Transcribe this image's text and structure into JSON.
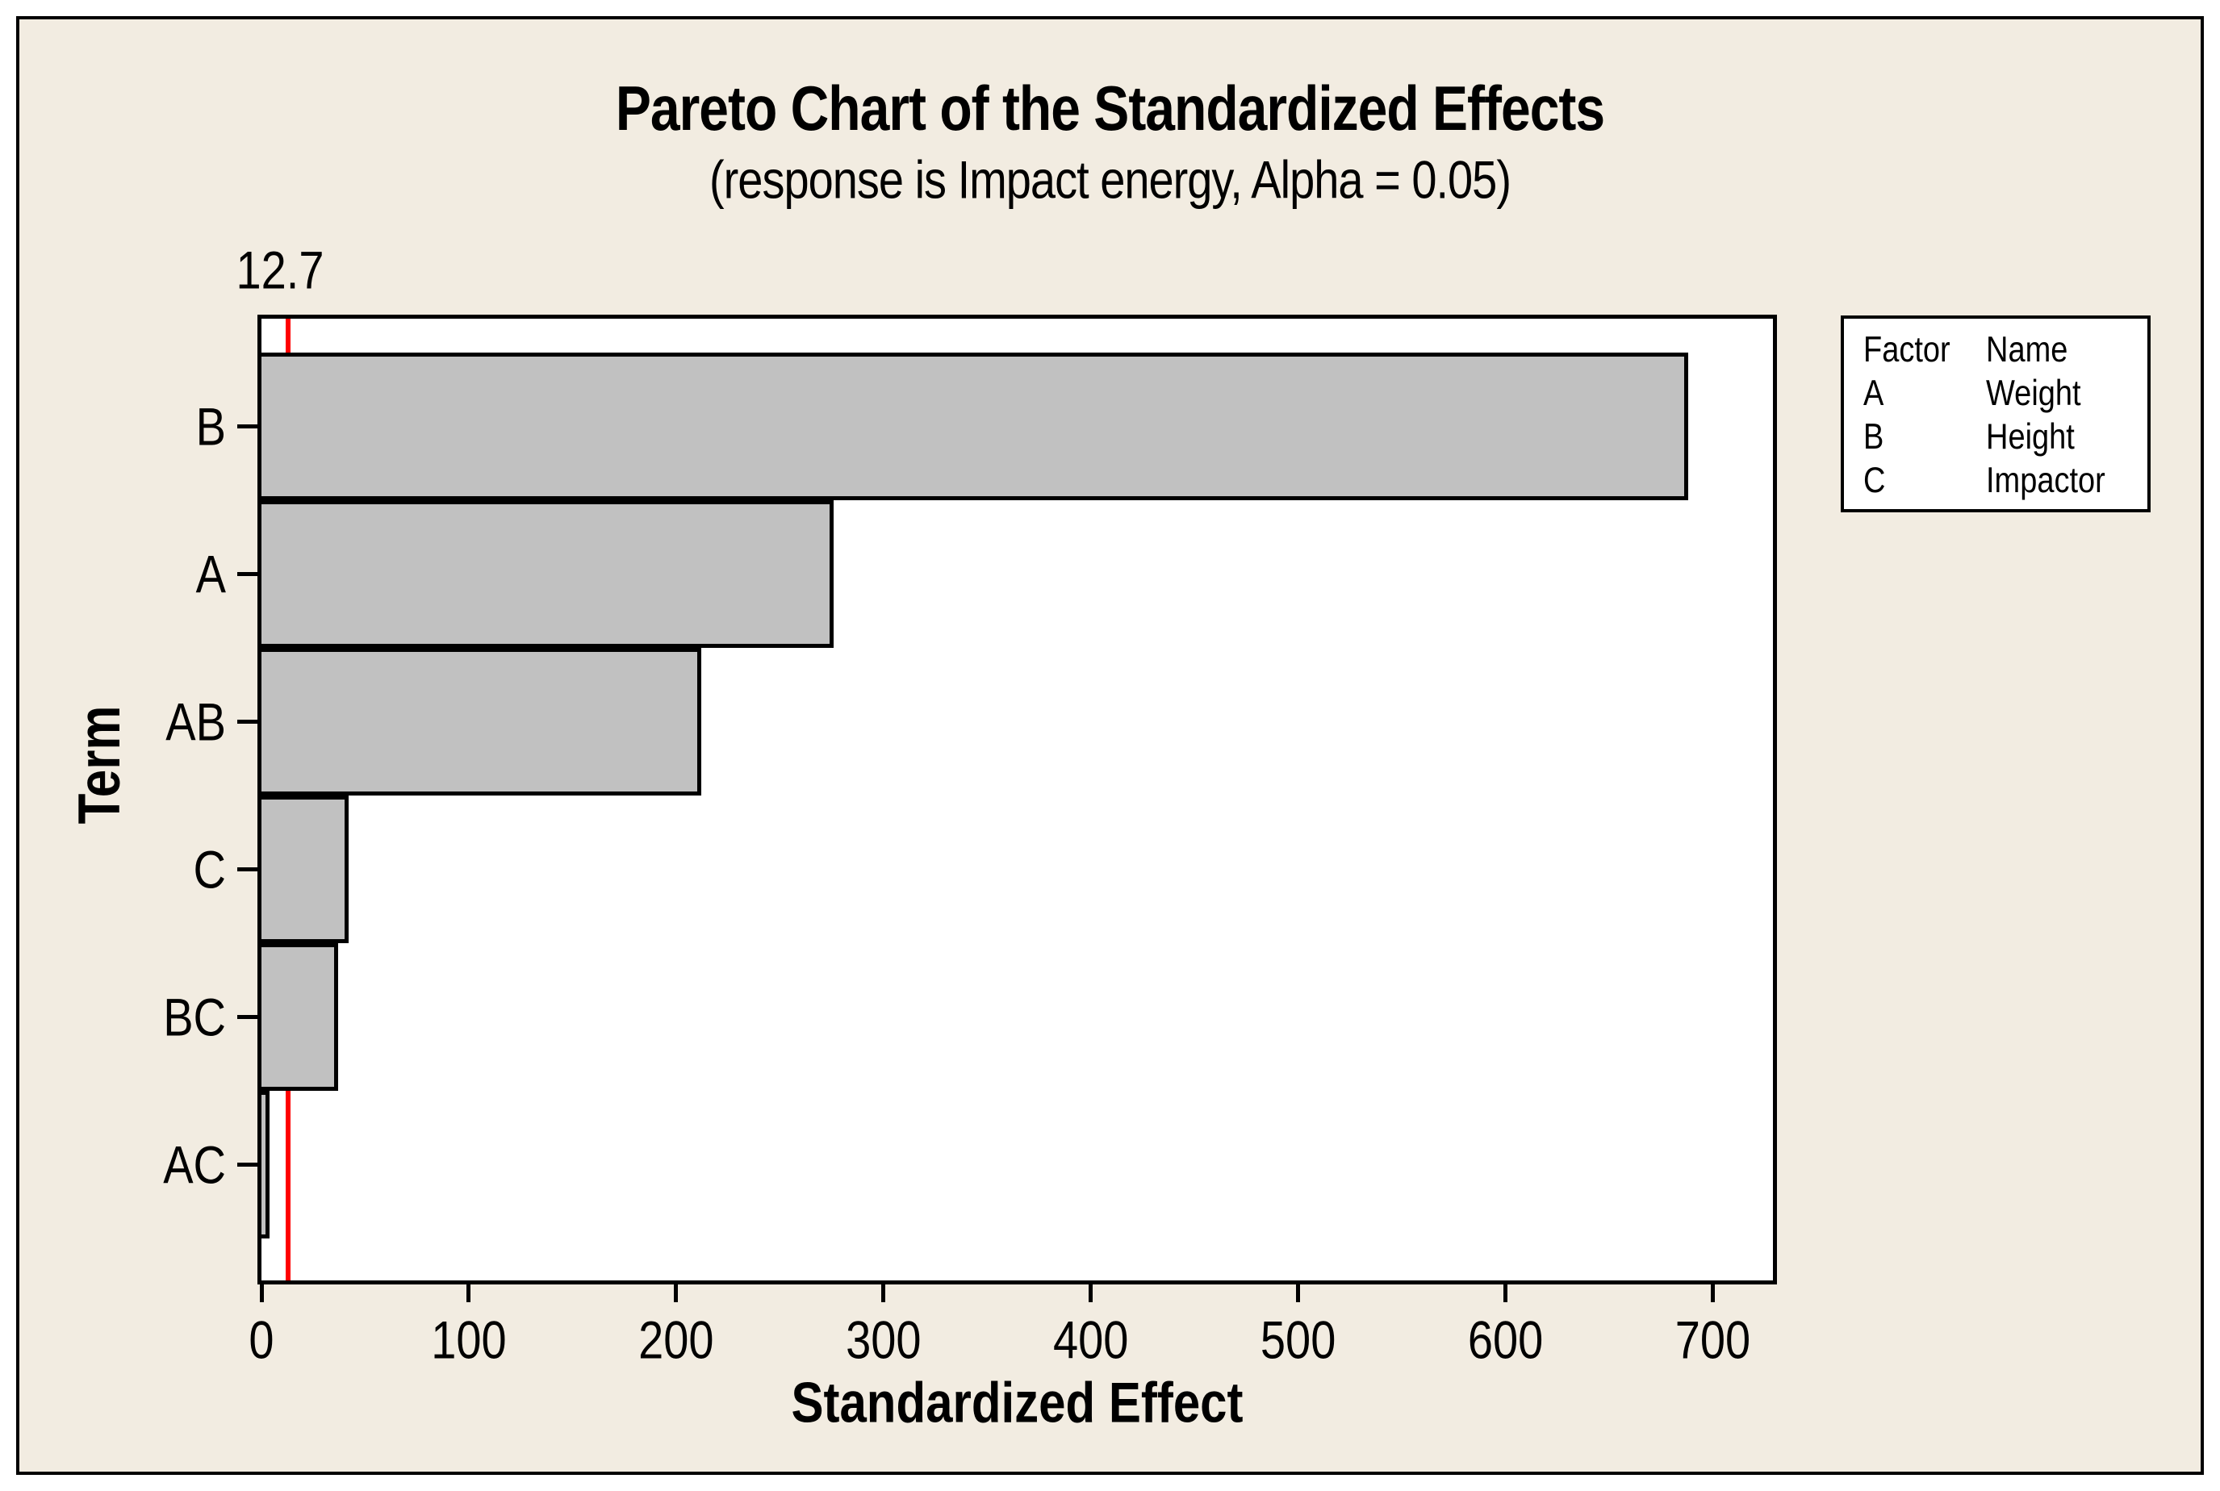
{
  "figure": {
    "title": "Pareto Chart of the Standardized Effects",
    "subtitle": "(response is Impact energy, Alpha = 0.05)"
  },
  "axes": {
    "x_label": "Standardized Effect",
    "y_label": "Term",
    "x_ticks": [
      "0",
      "100",
      "200",
      "300",
      "400",
      "500",
      "600",
      "700"
    ]
  },
  "reference_line": {
    "label": "12.7",
    "value": 12.7,
    "color": "#FF0000"
  },
  "legend": {
    "header": {
      "factor": "Factor",
      "name": "Name"
    },
    "rows": [
      {
        "factor": "A",
        "name": "Weight"
      },
      {
        "factor": "B",
        "name": "Height"
      },
      {
        "factor": "C",
        "name": "Impactor"
      }
    ]
  },
  "chart_data": {
    "type": "bar",
    "orientation": "horizontal",
    "title": "Pareto Chart of the Standardized Effects",
    "subtitle": "(response is Impact energy, Alpha = 0.05)",
    "xlabel": "Standardized Effect",
    "ylabel": "Term",
    "categories": [
      "B",
      "A",
      "AB",
      "C",
      "BC",
      "AC"
    ],
    "values": [
      688,
      276,
      212,
      42,
      37,
      4
    ],
    "xlim": [
      0,
      729
    ],
    "x_tick_interval": 100,
    "reference_line": {
      "value": 12.7,
      "label": "12.7"
    },
    "grid": false,
    "legend_position": "right-outside",
    "bar_color": "#C1C1C1",
    "bar_border_color": "#000000"
  },
  "colors": {
    "canvas_background": "#FFFFFF",
    "figure_background": "#F2ECE1",
    "plot_background": "#FFFFFF",
    "bar_fill": "#C1C1C1",
    "line_color": "#000000",
    "reference_line": "#FF0000",
    "text": "#000000"
  }
}
